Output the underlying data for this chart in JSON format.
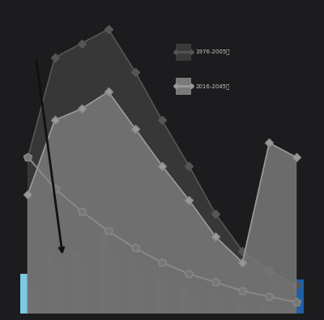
{
  "background_color": "#1c1c1e",
  "light_blue": "#87ceeb",
  "mid_blue": "#1e90ff",
  "dark_blue": "#1e3a8a",
  "bar_light": "#7ec8e3",
  "bar_dark": "#1f5fa6",
  "area1_color": "#3a3a3a",
  "area2_color": "#7a7a7a",
  "line_color": "#888888",
  "arrow_color": "#2a2a2a",
  "legend_text_color": "#cccccc",
  "n_cats": 11,
  "bar_width": 0.28,
  "bar_gap": 0.04,
  "bars_light": [
    14,
    22,
    22,
    30,
    20,
    14,
    10,
    7,
    5,
    3,
    2
  ],
  "bars_dark": [
    10,
    16,
    16,
    22,
    14,
    10,
    7,
    5,
    3,
    12,
    12
  ],
  "area1_x": [
    0,
    1,
    2,
    3,
    4,
    5,
    6,
    7,
    8,
    9,
    10
  ],
  "area1_y": [
    55,
    90,
    95,
    100,
    85,
    68,
    52,
    35,
    22,
    15,
    10
  ],
  "area2_x": [
    0,
    1,
    2,
    3,
    4,
    5,
    6,
    7,
    8,
    9,
    10
  ],
  "area2_y": [
    42,
    68,
    72,
    78,
    65,
    52,
    40,
    27,
    18,
    60,
    55
  ],
  "line_x": [
    0,
    1,
    2,
    3,
    4,
    5,
    6,
    7,
    8,
    9,
    10
  ],
  "line_y": [
    55,
    44,
    36,
    29,
    23,
    18,
    14,
    11,
    8,
    6,
    4
  ],
  "figsize": [
    4.0,
    3.95
  ],
  "dpi": 100
}
